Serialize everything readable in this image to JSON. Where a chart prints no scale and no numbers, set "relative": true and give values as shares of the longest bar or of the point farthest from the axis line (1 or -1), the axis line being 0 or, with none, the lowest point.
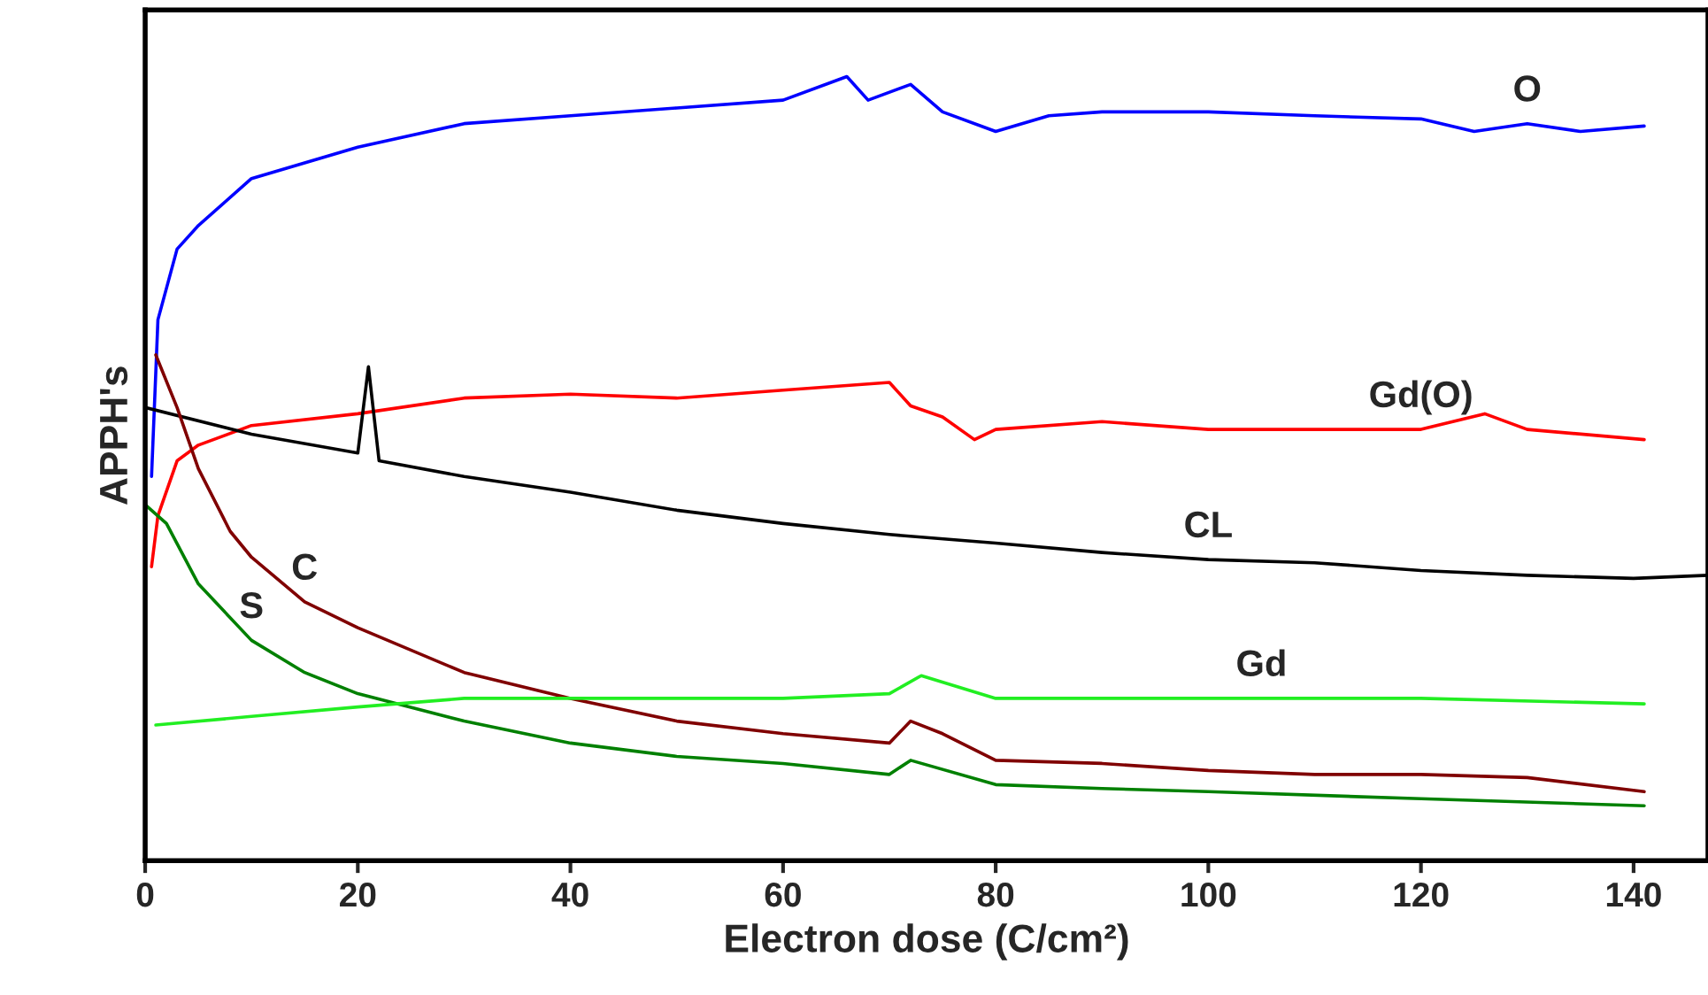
{
  "chart_data": {
    "type": "line",
    "relative": true,
    "xlabel": "Electron dose (C/cm²)",
    "ylabel": "APPH's",
    "xlim": [
      0,
      147
    ],
    "xticks": [
      0,
      20,
      40,
      60,
      80,
      100,
      120,
      140
    ],
    "grid": false,
    "legend": false,
    "marker": "none",
    "line_style": "solid",
    "series": [
      {
        "color": "#0000ff",
        "x": [
          0.6,
          1.2,
          3,
          5,
          10,
          15,
          20,
          30,
          40,
          50,
          60,
          66,
          68,
          72,
          75,
          80,
          85,
          90,
          100,
          110,
          120,
          125,
          130,
          135,
          141
        ],
        "values": [
          0.49,
          0.69,
          0.78,
          0.81,
          0.87,
          0.89,
          0.91,
          0.94,
          0.95,
          0.96,
          0.97,
          1.0,
          0.97,
          0.99,
          0.955,
          0.93,
          0.95,
          0.955,
          0.955,
          0.95,
          0.946,
          0.93,
          0.94,
          0.93,
          0.937
        ]
      },
      {
        "color": "#ff0000",
        "x": [
          0.6,
          1.2,
          3,
          5,
          10,
          20,
          30,
          40,
          50,
          60,
          70,
          72,
          75,
          78,
          80,
          90,
          100,
          110,
          120,
          126,
          130,
          141
        ],
        "values": [
          0.375,
          0.44,
          0.51,
          0.53,
          0.555,
          0.57,
          0.59,
          0.595,
          0.59,
          0.6,
          0.61,
          0.58,
          0.566,
          0.537,
          0.55,
          0.56,
          0.55,
          0.55,
          0.55,
          0.57,
          0.55,
          0.537
        ]
      },
      {
        "color": "#000000",
        "x": [
          0,
          10,
          20,
          21,
          22,
          30,
          40,
          50,
          60,
          70,
          80,
          90,
          100,
          110,
          120,
          130,
          140,
          147
        ],
        "values": [
          0.578,
          0.544,
          0.52,
          0.63,
          0.51,
          0.49,
          0.47,
          0.447,
          0.43,
          0.416,
          0.405,
          0.393,
          0.384,
          0.38,
          0.37,
          0.364,
          0.36,
          0.364
        ]
      },
      {
        "color": "#800000",
        "x": [
          1,
          3,
          5,
          8,
          10,
          15,
          20,
          30,
          40,
          50,
          60,
          70,
          72,
          75,
          80,
          90,
          100,
          110,
          120,
          130,
          141
        ],
        "values": [
          0.645,
          0.578,
          0.5,
          0.42,
          0.387,
          0.33,
          0.297,
          0.24,
          0.207,
          0.178,
          0.162,
          0.15,
          0.178,
          0.162,
          0.128,
          0.124,
          0.115,
          0.11,
          0.11,
          0.106,
          0.088
        ]
      },
      {
        "color": "#008000",
        "x": [
          0,
          2,
          5,
          10,
          15,
          20,
          30,
          40,
          50,
          60,
          70,
          72,
          80,
          90,
          100,
          120,
          141
        ],
        "values": [
          0.454,
          0.43,
          0.353,
          0.281,
          0.24,
          0.213,
          0.178,
          0.15,
          0.133,
          0.124,
          0.11,
          0.128,
          0.097,
          0.092,
          0.088,
          0.079,
          0.07
        ]
      },
      {
        "color": "#22ee22",
        "x": [
          1,
          10,
          20,
          30,
          40,
          50,
          60,
          70,
          73,
          80,
          100,
          120,
          141
        ],
        "values": [
          0.173,
          0.184,
          0.196,
          0.207,
          0.207,
          0.207,
          0.207,
          0.213,
          0.236,
          0.207,
          0.207,
          0.207,
          0.2
        ]
      }
    ],
    "annotations": [
      {
        "text": "O",
        "x": 130,
        "y": 0.94
      },
      {
        "text": "Gd(O)",
        "x": 120,
        "y": 0.55
      },
      {
        "text": "CL",
        "x": 100,
        "y": 0.384
      },
      {
        "text": "C",
        "x": 15,
        "y": 0.33
      },
      {
        "text": "S",
        "x": 10,
        "y": 0.281
      },
      {
        "text": "Gd",
        "x": 105,
        "y": 0.207
      }
    ]
  }
}
